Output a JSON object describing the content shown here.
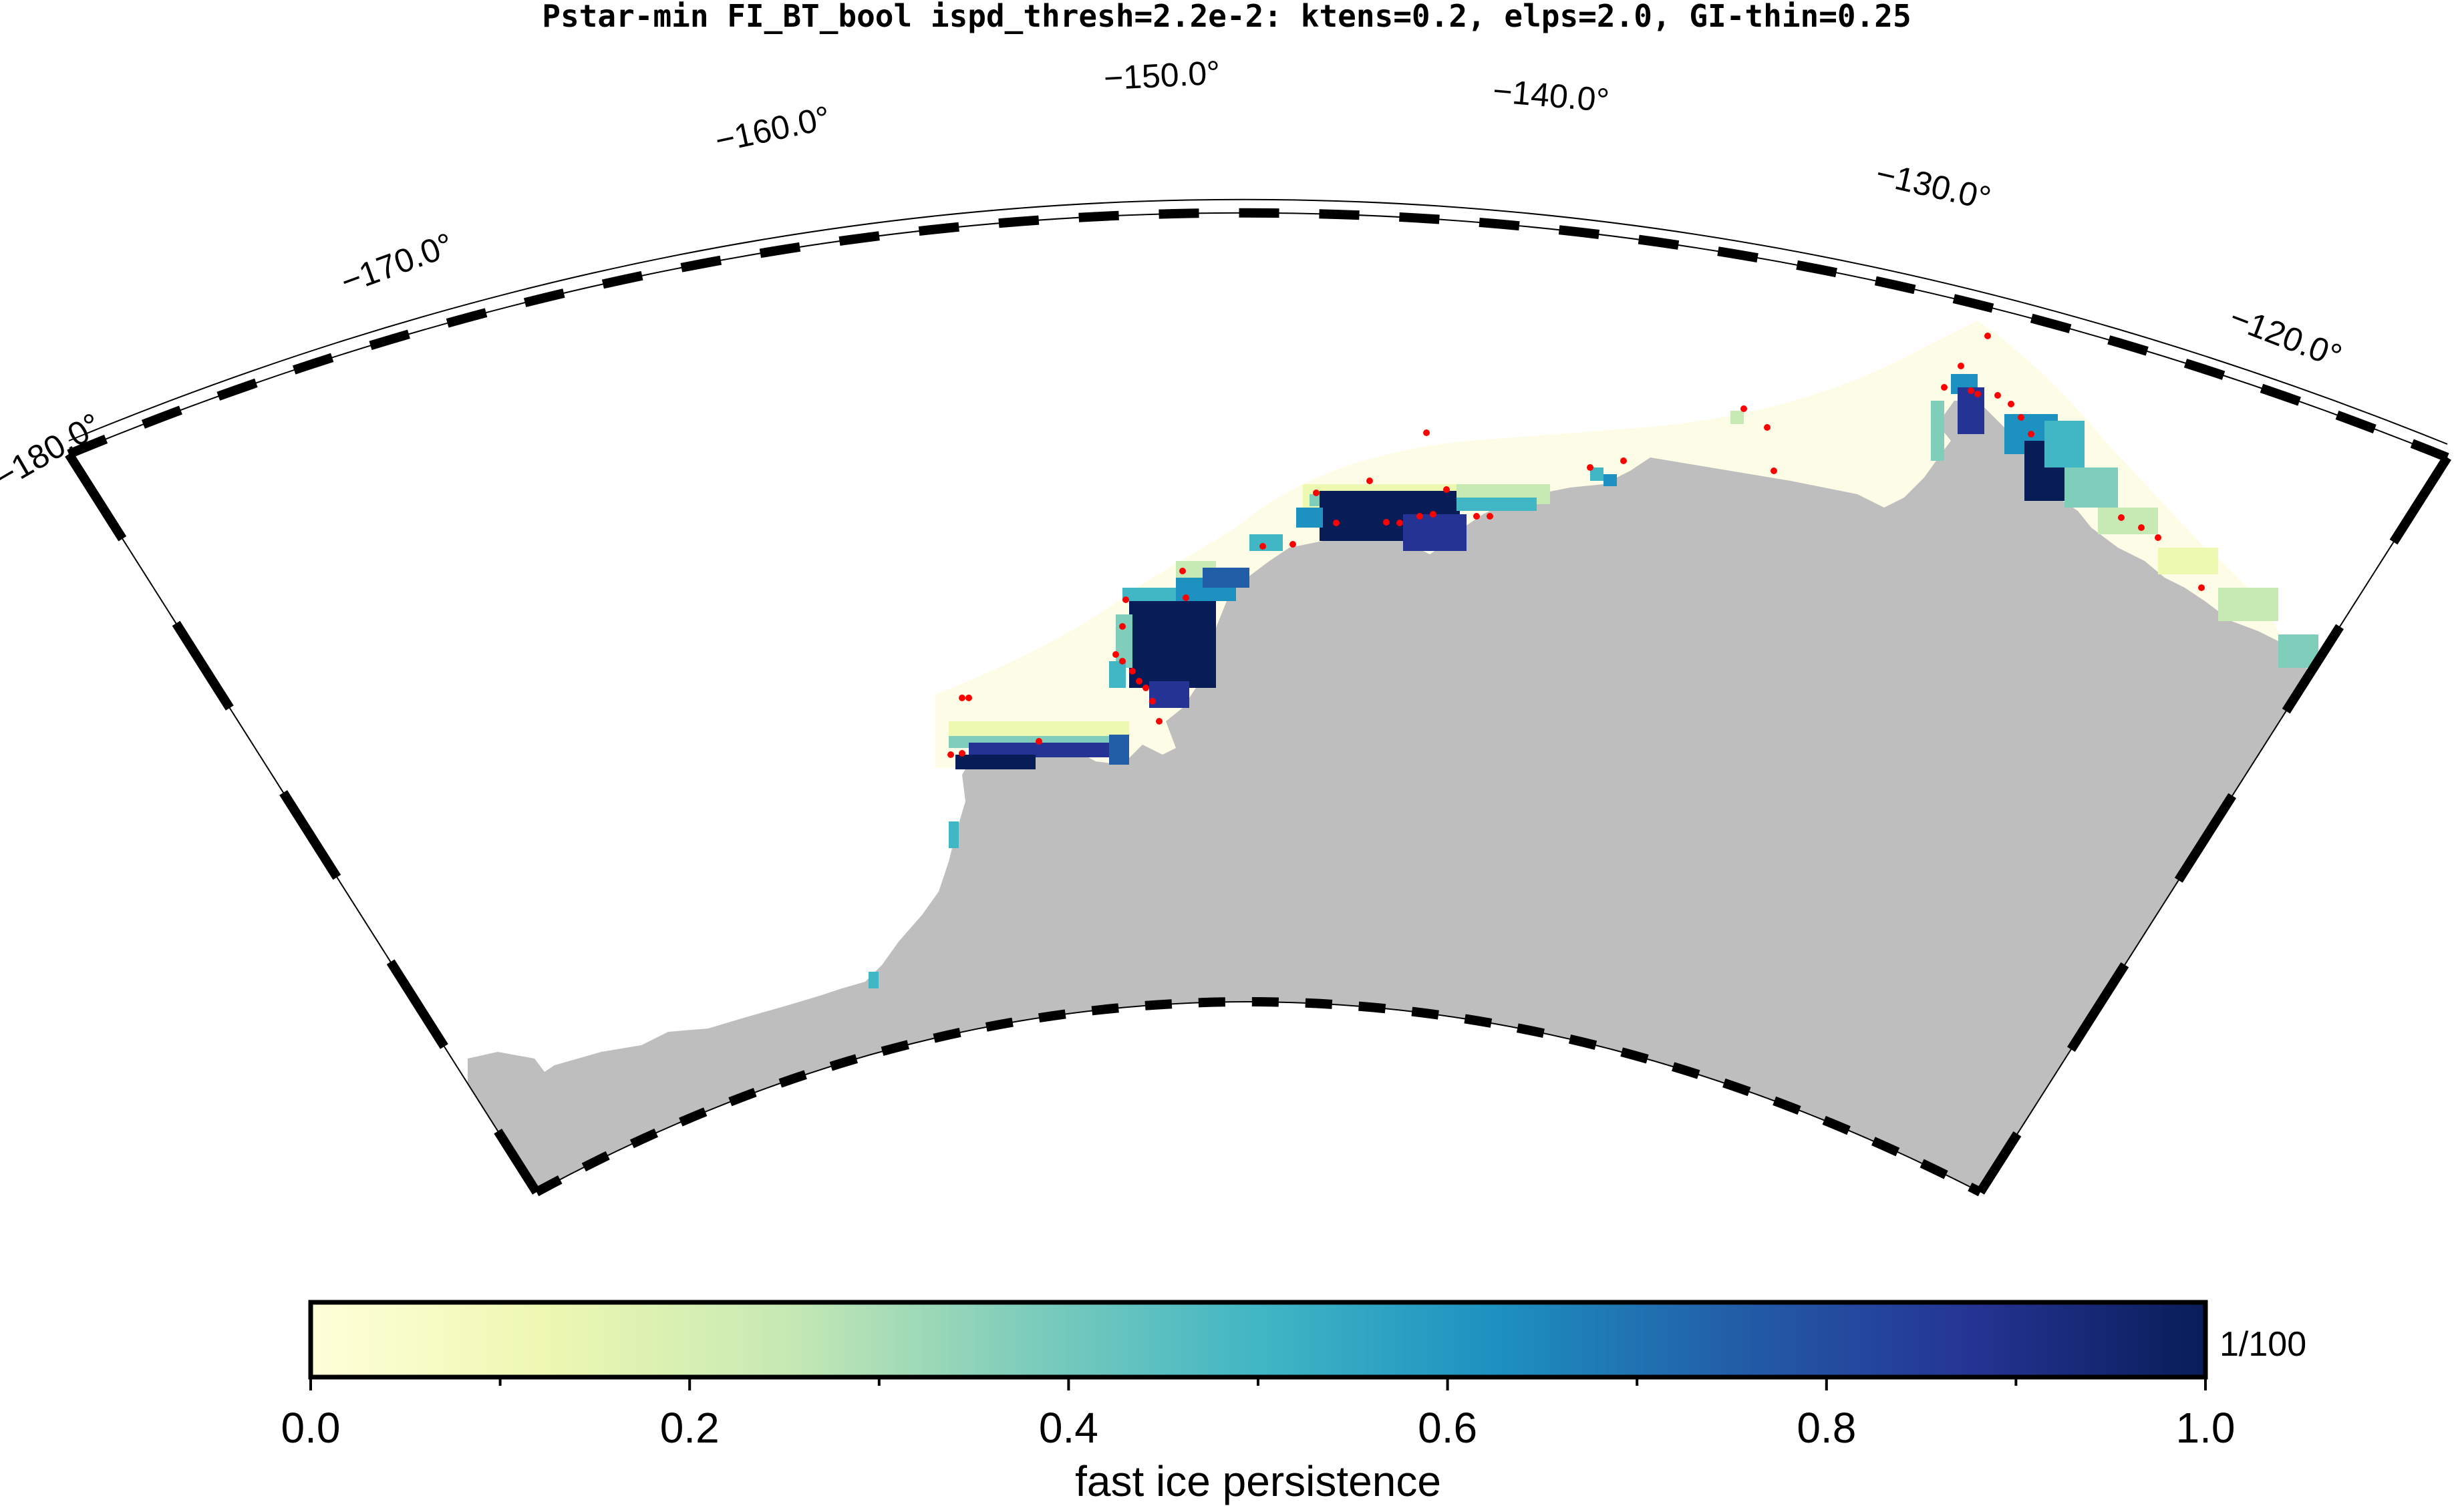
{
  "title": "Pstar-min FI_BT_bool ispd_thresh=2.2e-2: ktens=0.2, elps=2.0, GI-thin=0.25",
  "map": {
    "region": "Antarctic coast (Ross Sea / Marie Byrd Land sector)",
    "projection": "polar stereographic sector",
    "longitude_labels": [
      "−180.0°",
      "−170.0°",
      "−160.0°",
      "−150.0°",
      "−140.0°",
      "−130.0°",
      "−120.0°"
    ],
    "colors": {
      "land": "#bebebe",
      "ocean": "#ffffff",
      "grounded_iceberg_marker": "#ff0000",
      "frame": "#000000"
    }
  },
  "colorbar": {
    "label": "fast ice persistence",
    "unit": "1/100",
    "ticks": [
      "0.0",
      "0.2",
      "0.4",
      "0.6",
      "0.8",
      "1.0"
    ],
    "range": [
      0.0,
      1.0
    ],
    "colormap": "YlGnBu",
    "stops": [
      "#ffffd9",
      "#edf8b1",
      "#c7e9b4",
      "#7fcdbb",
      "#41b6c4",
      "#1d91c0",
      "#225ea8",
      "#253494",
      "#081d58"
    ]
  }
}
